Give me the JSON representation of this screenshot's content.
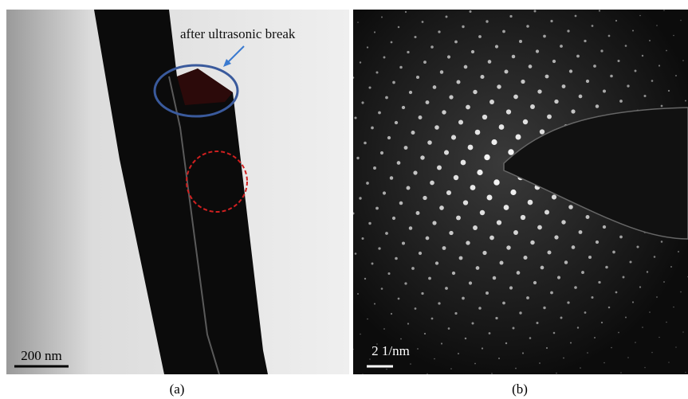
{
  "panels": [
    {
      "annotation": "after ultrasonic break",
      "scale_bar": "200 nm",
      "caption": "(a)"
    },
    {
      "scale_bar": "2 1/nm",
      "caption": "(b)"
    }
  ]
}
